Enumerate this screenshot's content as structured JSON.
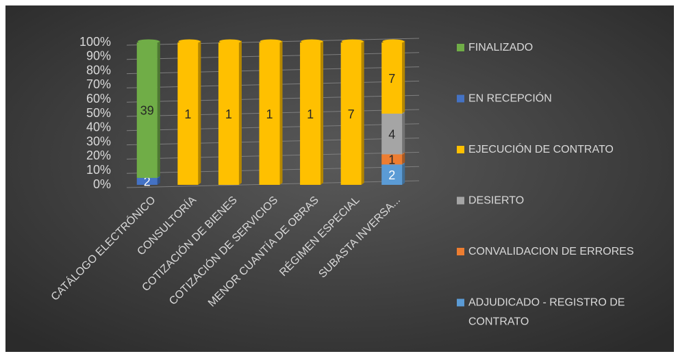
{
  "chart_data": {
    "type": "stacked_percent_bar",
    "categories": [
      "CATÁLOGO ELECTRÓNICO",
      "CONSULTORÍA",
      "COTIZACIÓN DE BIENES",
      "COTIZACIÓN DE SERVICIOS",
      "MENOR CUANTÍA DE OBRAS",
      "RÉGIMEN ESPECIAL",
      "SUBASTA INVERSA..."
    ],
    "series": [
      {
        "name": "ADJUDICADO - REGISTRO DE CONTRATO",
        "color": "#5b9bd5",
        "values": [
          null,
          null,
          null,
          null,
          null,
          null,
          2
        ]
      },
      {
        "name": "CONVALIDACION DE ERRORES",
        "color": "#ed7d31",
        "values": [
          null,
          null,
          null,
          null,
          null,
          null,
          1
        ]
      },
      {
        "name": "DESIERTO",
        "color": "#a5a5a5",
        "values": [
          null,
          null,
          null,
          null,
          null,
          null,
          4
        ]
      },
      {
        "name": "EJECUCIÓN DE CONTRATO",
        "color": "#ffc000",
        "values": [
          null,
          1,
          1,
          1,
          1,
          7,
          7
        ]
      },
      {
        "name": "EN RECEPCIÓN",
        "color": "#4472c4",
        "values": [
          2,
          null,
          null,
          null,
          null,
          null,
          null
        ]
      },
      {
        "name": "FINALIZADO",
        "color": "#70ad47",
        "values": [
          39,
          null,
          null,
          null,
          null,
          null,
          null
        ]
      }
    ],
    "ylim": [
      0,
      100
    ],
    "yticks": [
      {
        "value": 0,
        "label": "0%"
      },
      {
        "value": 10,
        "label": "10%"
      },
      {
        "value": 20,
        "label": "20%"
      },
      {
        "value": 30,
        "label": "30%"
      },
      {
        "value": 40,
        "label": "40%"
      },
      {
        "value": 50,
        "label": "50%"
      },
      {
        "value": 60,
        "label": "60%"
      },
      {
        "value": 70,
        "label": "70%"
      },
      {
        "value": 80,
        "label": "80%"
      },
      {
        "value": 90,
        "label": "90%"
      },
      {
        "value": 100,
        "label": "100%"
      }
    ],
    "grid": true,
    "legend": "right"
  }
}
